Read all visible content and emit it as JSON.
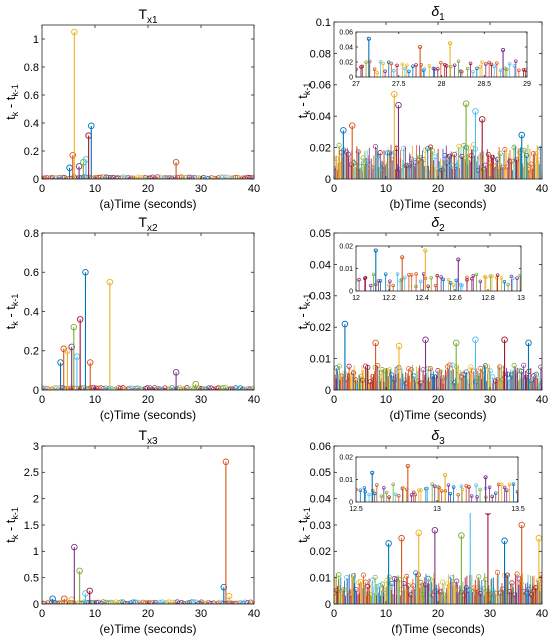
{
  "figure": {
    "background": "#ffffff",
    "axis_color": "#262626",
    "inset_fill": "#ffffff"
  },
  "chart_data": [
    {
      "id": "Tx1",
      "type": "stem",
      "title": "T",
      "title_sub": "x1",
      "xlabel": "(a)Time (seconds)",
      "ylabel": "t",
      "xlim": [
        0,
        40
      ],
      "ylim": [
        0,
        1.1
      ],
      "xticks": [
        0,
        10,
        20,
        30,
        40
      ],
      "yticks": [
        0,
        0.2,
        0.4,
        0.6,
        0.8,
        1
      ],
      "baseline_max": 0.015,
      "peaks": [
        {
          "x": 5.2,
          "y": 0.08
        },
        {
          "x": 5.8,
          "y": 0.17
        },
        {
          "x": 6.1,
          "y": 1.05
        },
        {
          "x": 7.0,
          "y": 0.09
        },
        {
          "x": 7.8,
          "y": 0.12
        },
        {
          "x": 8.3,
          "y": 0.14
        },
        {
          "x": 8.8,
          "y": 0.31
        },
        {
          "x": 9.3,
          "y": 0.38
        },
        {
          "x": 25.3,
          "y": 0.12
        }
      ]
    },
    {
      "id": "delta1",
      "type": "stem",
      "title": "δ",
      "title_sub": "1",
      "xlabel": "(b)Time (seconds)",
      "ylabel": "t",
      "xlim": [
        0,
        40
      ],
      "ylim": [
        0,
        0.1
      ],
      "xticks": [
        0,
        10,
        20,
        30,
        40
      ],
      "yticks": [
        0,
        0.02,
        0.04,
        0.06,
        0.08,
        0.1
      ],
      "baseline_max": 0.022,
      "peaks": [
        {
          "x": 1.8,
          "y": 0.031
        },
        {
          "x": 3.5,
          "y": 0.034
        },
        {
          "x": 11.6,
          "y": 0.054
        },
        {
          "x": 12.4,
          "y": 0.047
        },
        {
          "x": 25.4,
          "y": 0.048
        },
        {
          "x": 27.2,
          "y": 0.043
        },
        {
          "x": 28.5,
          "y": 0.038
        },
        {
          "x": 36.1,
          "y": 0.028
        }
      ],
      "inset": {
        "xlim": [
          27,
          29
        ],
        "ylim": [
          0,
          0.06
        ],
        "xticks": [
          27,
          27.5,
          28,
          28.5,
          29
        ],
        "yticks": [
          0,
          0.02,
          0.04,
          0.06
        ],
        "baseline_max": 0.022,
        "peaks": [
          {
            "x": 27.15,
            "y": 0.051
          },
          {
            "x": 27.75,
            "y": 0.04
          },
          {
            "x": 28.1,
            "y": 0.045
          },
          {
            "x": 28.72,
            "y": 0.036
          }
        ]
      }
    },
    {
      "id": "Tx2",
      "type": "stem",
      "title": "T",
      "title_sub": "x2",
      "xlabel": "(c)Time (seconds)",
      "ylabel": "t",
      "xlim": [
        0,
        40
      ],
      "ylim": [
        0,
        0.8
      ],
      "xticks": [
        0,
        10,
        20,
        30,
        40
      ],
      "yticks": [
        0,
        0.2,
        0.4,
        0.6,
        0.8
      ],
      "baseline_max": 0.012,
      "peaks": [
        {
          "x": 3.5,
          "y": 0.14
        },
        {
          "x": 4.1,
          "y": 0.21
        },
        {
          "x": 4.8,
          "y": 0.2
        },
        {
          "x": 5.6,
          "y": 0.22
        },
        {
          "x": 6.0,
          "y": 0.32
        },
        {
          "x": 6.6,
          "y": 0.17
        },
        {
          "x": 7.2,
          "y": 0.36
        },
        {
          "x": 8.2,
          "y": 0.6
        },
        {
          "x": 9.1,
          "y": 0.14
        },
        {
          "x": 12.8,
          "y": 0.55
        },
        {
          "x": 25.3,
          "y": 0.09
        },
        {
          "x": 29.0,
          "y": 0.03
        }
      ]
    },
    {
      "id": "delta2",
      "type": "stem",
      "title": "δ",
      "title_sub": "2",
      "xlabel": "(d)Time (seconds)",
      "ylabel": "t",
      "xlim": [
        0,
        40
      ],
      "ylim": [
        0,
        0.05
      ],
      "xticks": [
        0,
        10,
        20,
        30,
        40
      ],
      "yticks": [
        0,
        0.01,
        0.02,
        0.03,
        0.04,
        0.05
      ],
      "baseline_max": 0.008,
      "peaks": [
        {
          "x": 2.1,
          "y": 0.021
        },
        {
          "x": 8.0,
          "y": 0.015
        },
        {
          "x": 12.5,
          "y": 0.014
        },
        {
          "x": 17.6,
          "y": 0.016
        },
        {
          "x": 23.5,
          "y": 0.015
        },
        {
          "x": 27.2,
          "y": 0.016
        },
        {
          "x": 32.8,
          "y": 0.016
        },
        {
          "x": 37.4,
          "y": 0.015
        }
      ],
      "inset": {
        "xlim": [
          12,
          13
        ],
        "ylim": [
          0,
          0.02
        ],
        "xticks": [
          12,
          12.2,
          12.4,
          12.6,
          12.8,
          13
        ],
        "yticks": [
          0,
          0.01,
          0.02
        ],
        "baseline_max": 0.008,
        "peaks": [
          {
            "x": 12.12,
            "y": 0.018
          },
          {
            "x": 12.28,
            "y": 0.015
          },
          {
            "x": 12.42,
            "y": 0.018
          },
          {
            "x": 12.62,
            "y": 0.014
          }
        ]
      }
    },
    {
      "id": "Tx3",
      "type": "stem",
      "title": "T",
      "title_sub": "x3",
      "xlabel": "(e)Time (seconds)",
      "ylabel": "t",
      "xlim": [
        0,
        40
      ],
      "ylim": [
        0,
        3
      ],
      "xticks": [
        0,
        10,
        20,
        30,
        40
      ],
      "yticks": [
        0,
        0.5,
        1,
        1.5,
        2,
        2.5,
        3
      ],
      "baseline_max": 0.04,
      "peaks": [
        {
          "x": 2.0,
          "y": 0.1
        },
        {
          "x": 4.2,
          "y": 0.1
        },
        {
          "x": 5.6,
          "y": 0.08
        },
        {
          "x": 6.1,
          "y": 1.08
        },
        {
          "x": 7.1,
          "y": 0.63
        },
        {
          "x": 8.2,
          "y": 0.2
        },
        {
          "x": 9.0,
          "y": 0.25
        },
        {
          "x": 34.3,
          "y": 0.32
        },
        {
          "x": 34.7,
          "y": 2.7
        },
        {
          "x": 35.3,
          "y": 0.15
        }
      ]
    },
    {
      "id": "delta3",
      "type": "stem",
      "title": "δ",
      "title_sub": "3",
      "xlabel": "(f)Time (seconds)",
      "ylabel": "t",
      "xlim": [
        0,
        40
      ],
      "ylim": [
        0,
        0.06
      ],
      "xticks": [
        0,
        10,
        20,
        30,
        40
      ],
      "yticks": [
        0,
        0.01,
        0.02,
        0.03,
        0.04,
        0.05,
        0.06
      ],
      "baseline_max": 0.012,
      "peaks": [
        {
          "x": 10.5,
          "y": 0.023
        },
        {
          "x": 13.0,
          "y": 0.025
        },
        {
          "x": 16.3,
          "y": 0.027
        },
        {
          "x": 19.4,
          "y": 0.028
        },
        {
          "x": 24.5,
          "y": 0.026
        },
        {
          "x": 26.2,
          "y": 0.036
        },
        {
          "x": 29.6,
          "y": 0.035
        },
        {
          "x": 32.8,
          "y": 0.024
        },
        {
          "x": 36.1,
          "y": 0.03
        },
        {
          "x": 39.4,
          "y": 0.025
        }
      ],
      "inset": {
        "xlim": [
          12.5,
          13.5
        ],
        "ylim": [
          0,
          0.02
        ],
        "xticks": [
          12.5,
          13,
          13.5
        ],
        "yticks": [
          0,
          0.01,
          0.02
        ],
        "baseline_max": 0.008,
        "peaks": [
          {
            "x": 12.6,
            "y": 0.013
          },
          {
            "x": 12.82,
            "y": 0.016
          },
          {
            "x": 13.05,
            "y": 0.012
          },
          {
            "x": 13.3,
            "y": 0.011
          }
        ]
      }
    }
  ],
  "labels": {
    "ylabel_t": "t",
    "ylabel_k": "k",
    "ylabel_dash": " - t",
    "ylabel_km1": "k-1"
  },
  "palette": [
    "#0072BD",
    "#D95319",
    "#EDB120",
    "#7E2F8E",
    "#77AC30",
    "#4DBEEE",
    "#A2142F"
  ]
}
